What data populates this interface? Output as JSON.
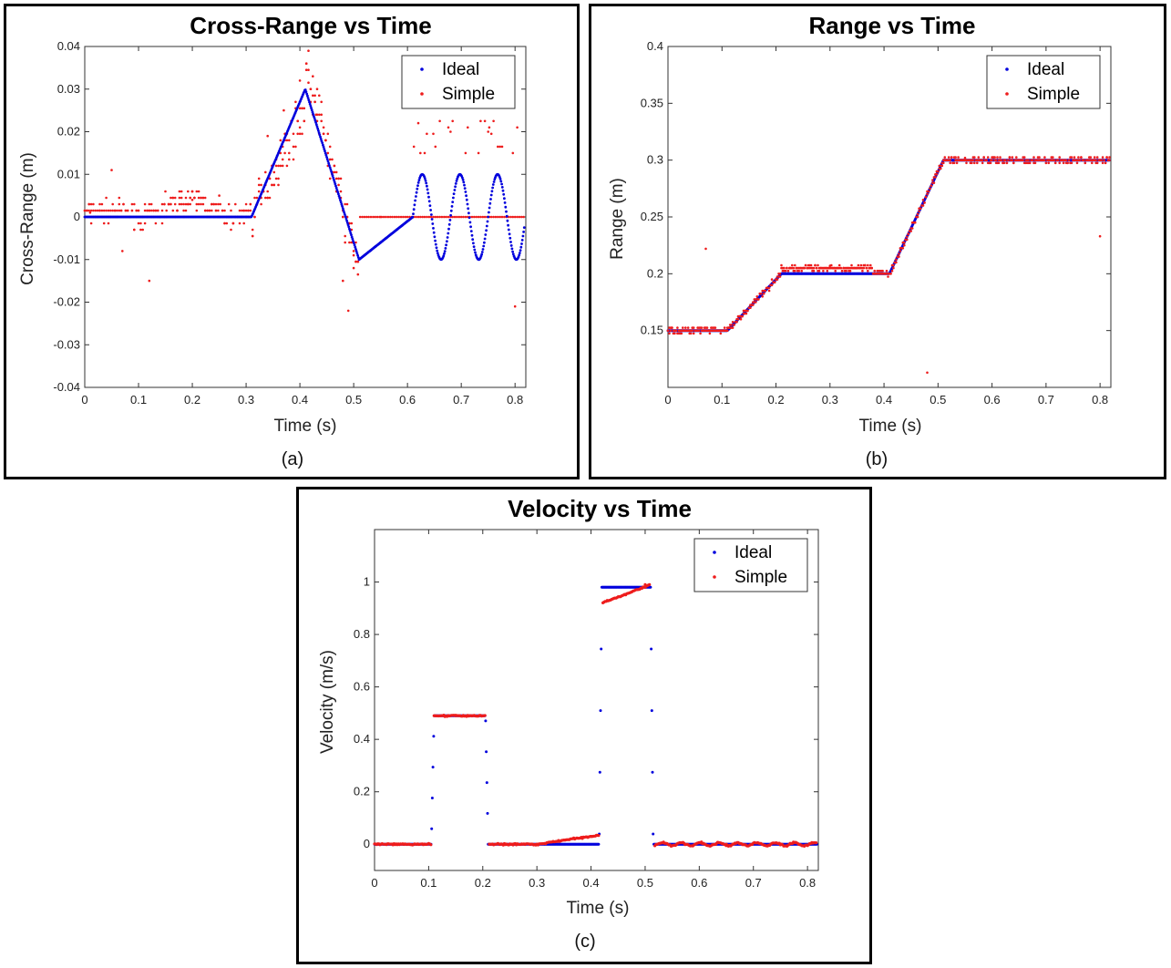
{
  "colors": {
    "ideal": "#0000dd",
    "simple": "#ee1c1c"
  },
  "chart_data": [
    {
      "id": "a",
      "type": "scatter",
      "title": "Cross-Range vs Time",
      "xlabel": "Time (s)",
      "ylabel": "Cross-Range (m)",
      "caption": "(a)",
      "xlim": [
        0,
        0.82
      ],
      "ylim": [
        -0.04,
        0.04
      ],
      "xticks": [
        0,
        0.1,
        0.2,
        0.3,
        0.4,
        0.5,
        0.6,
        0.7,
        0.8
      ],
      "xtick_labels": [
        "0",
        "0.1",
        "0.2",
        "0.3",
        "0.4",
        "0.5",
        "0.6",
        "0.7",
        "0.8"
      ],
      "yticks": [
        -0.04,
        -0.03,
        -0.02,
        -0.01,
        0,
        0.01,
        0.02,
        0.03,
        0.04
      ],
      "ytick_labels": [
        "-0.04",
        "-0.03",
        "-0.02",
        "-0.01",
        "0",
        "0.01",
        "0.02",
        "0.03",
        "0.04"
      ],
      "legend": [
        "Ideal",
        "Simple"
      ],
      "legend_position": "top-right",
      "series": [
        {
          "name": "Ideal",
          "segments": [
            {
              "x": [
                0,
                0.31,
                0.41,
                0.51,
                0.61
              ],
              "y": [
                0,
                0,
                0.03,
                -0.01,
                0
              ]
            },
            {
              "sine": {
                "x_start": 0.61,
                "x_end": 0.82,
                "amplitude": 0.01,
                "period": 0.07
              }
            }
          ]
        },
        {
          "name": "Simple",
          "description": "scattered estimates",
          "sample_points": [
            [
              0.01,
              0.001
            ],
            [
              0.05,
              0.011
            ],
            [
              0.07,
              -0.008
            ],
            [
              0.12,
              -0.015
            ],
            [
              0.15,
              0.006
            ],
            [
              0.2,
              0.004
            ],
            [
              0.25,
              0.005
            ],
            [
              0.3,
              0.003
            ],
            [
              0.34,
              0.019
            ],
            [
              0.37,
              0.025
            ],
            [
              0.4,
              0.032
            ],
            [
              0.43,
              0.024
            ],
            [
              0.46,
              0.01
            ],
            [
              0.48,
              -0.015
            ],
            [
              0.49,
              -0.022
            ],
            [
              0.5,
              -0.008
            ],
            [
              0.55,
              0
            ],
            [
              0.62,
              0.022
            ],
            [
              0.68,
              0.02
            ],
            [
              0.75,
              0.02
            ],
            [
              0.8,
              -0.021
            ]
          ]
        }
      ]
    },
    {
      "id": "b",
      "type": "scatter",
      "title": "Range vs Time",
      "xlabel": "Time (s)",
      "ylabel": "Range (m)",
      "caption": "(b)",
      "xlim": [
        0,
        0.82
      ],
      "ylim": [
        0.1,
        0.4
      ],
      "xticks": [
        0,
        0.1,
        0.2,
        0.3,
        0.4,
        0.5,
        0.6,
        0.7,
        0.8
      ],
      "xtick_labels": [
        "0",
        "0.1",
        "0.2",
        "0.3",
        "0.4",
        "0.5",
        "0.6",
        "0.7",
        "0.8"
      ],
      "yticks": [
        0.15,
        0.2,
        0.25,
        0.3,
        0.35,
        0.4
      ],
      "ytick_labels": [
        "0.15",
        "0.2",
        "0.25",
        "0.3",
        "0.35",
        "0.4"
      ],
      "legend": [
        "Ideal",
        "Simple"
      ],
      "legend_position": "top-right",
      "series": [
        {
          "name": "Ideal",
          "x": [
            0,
            0.11,
            0.21,
            0.41,
            0.51,
            0.82
          ],
          "y": [
            0.15,
            0.15,
            0.2,
            0.2,
            0.3,
            0.3
          ]
        },
        {
          "name": "Simple",
          "description": "noisy around ideal",
          "sample_points": [
            [
              0.07,
              0.222
            ],
            [
              0.48,
              0.113
            ],
            [
              0.8,
              0.233
            ],
            [
              0.3,
              0.207
            ],
            [
              0.55,
              0.302
            ]
          ]
        }
      ]
    },
    {
      "id": "c",
      "type": "scatter",
      "title": "Velocity vs Time",
      "xlabel": "Time (s)",
      "ylabel": "Velocity (m/s)",
      "caption": "(c)",
      "xlim": [
        0,
        0.82
      ],
      "ylim": [
        -0.1,
        1.2
      ],
      "xticks": [
        0,
        0.1,
        0.2,
        0.3,
        0.4,
        0.5,
        0.6,
        0.7,
        0.8
      ],
      "xtick_labels": [
        "0",
        "0.1",
        "0.2",
        "0.3",
        "0.4",
        "0.5",
        "0.6",
        "0.7",
        "0.8"
      ],
      "yticks": [
        0,
        0.2,
        0.4,
        0.6,
        0.8,
        1
      ],
      "ytick_labels": [
        "0",
        "0.2",
        "0.4",
        "0.6",
        "0.8",
        "1"
      ],
      "legend": [
        "Ideal",
        "Simple"
      ],
      "legend_position": "top-right",
      "series": [
        {
          "name": "Ideal",
          "x": [
            0,
            0.105,
            0.11,
            0.205,
            0.21,
            0.415,
            0.42,
            0.51,
            0.515,
            0.82
          ],
          "y": [
            0,
            0,
            0.49,
            0.49,
            0,
            0,
            0.98,
            0.98,
            0,
            0
          ]
        },
        {
          "name": "Simple",
          "description": "follows ideal with small drift",
          "sample_points": [
            [
              0.15,
              0.49
            ],
            [
              0.4,
              0.03
            ],
            [
              0.43,
              0.93
            ],
            [
              0.5,
              0.99
            ],
            [
              0.65,
              0
            ]
          ]
        }
      ]
    }
  ]
}
